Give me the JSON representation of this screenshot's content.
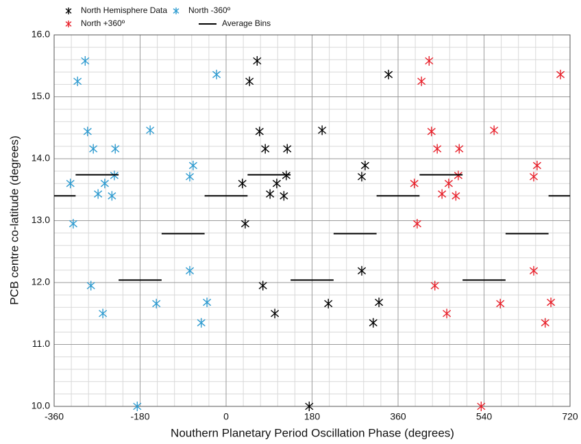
{
  "chart_data": {
    "type": "scatter",
    "xlabel": "Nouthern Planetary Period Oscillation Phase (degrees)",
    "ylabel": "PCB centre co-latitude (degrees)",
    "xlim": [
      -360,
      720
    ],
    "ylim": [
      10,
      16
    ],
    "xticks": [
      -360,
      -180,
      0,
      180,
      360,
      540,
      720
    ],
    "yticks": [
      {
        "value": 10,
        "label": "10.0"
      },
      {
        "value": 11,
        "label": "11.0"
      },
      {
        "value": 12,
        "label": "12.0"
      },
      {
        "value": 13,
        "label": "13.0"
      },
      {
        "value": 14,
        "label": "14.0"
      },
      {
        "value": 15,
        "label": "15.0"
      },
      {
        "value": 16,
        "label": "16.0"
      }
    ],
    "grid": true,
    "series": [
      {
        "name": "North Hemisphere Data",
        "color": "#000000",
        "x": [
          65,
          49,
          70,
          82,
          128,
          34,
          106,
          126,
          92,
          121,
          40,
          77,
          102,
          174,
          201,
          214,
          284,
          291,
          284,
          308,
          320,
          340
        ],
        "y": [
          15.58,
          15.25,
          14.44,
          14.16,
          14.16,
          13.6,
          13.6,
          13.73,
          13.43,
          13.4,
          12.95,
          11.95,
          11.5,
          10.0,
          14.46,
          11.66,
          12.19,
          13.89,
          13.71,
          11.35,
          11.68,
          15.36
        ]
      },
      {
        "name": "North +360º",
        "color": "#e8202a",
        "x": [
          425,
          409,
          430,
          442,
          488,
          394,
          466,
          486,
          452,
          481,
          400,
          437,
          462,
          534,
          561,
          574,
          644,
          651,
          644,
          668,
          680,
          700
        ],
        "y": [
          15.58,
          15.25,
          14.44,
          14.16,
          14.16,
          13.6,
          13.6,
          13.73,
          13.43,
          13.4,
          12.95,
          11.95,
          11.5,
          10.0,
          14.46,
          11.66,
          12.19,
          13.89,
          13.71,
          11.35,
          11.68,
          15.36
        ]
      },
      {
        "name": "North -360º",
        "color": "#2e9bd0",
        "x": [
          -295,
          -311,
          -290,
          -278,
          -232,
          -326,
          -254,
          -234,
          -268,
          -239,
          -320,
          -283,
          -258,
          -186,
          -159,
          -146,
          -76,
          -69,
          -76,
          -52,
          -40,
          -20
        ],
        "y": [
          15.58,
          15.25,
          14.44,
          14.16,
          14.16,
          13.6,
          13.6,
          13.73,
          13.43,
          13.4,
          12.95,
          11.95,
          11.5,
          10.0,
          14.46,
          11.66,
          12.19,
          13.89,
          13.71,
          11.35,
          11.68,
          15.36
        ]
      },
      {
        "name": "Average Bins",
        "color": "#000000",
        "bins": [
          -360,
          -315,
          -225,
          -135,
          -45,
          45,
          135,
          225,
          315,
          405,
          495,
          585,
          675,
          720
        ],
        "values": [
          13.4,
          13.74,
          12.04,
          12.79,
          13.4,
          13.74,
          12.04,
          12.79,
          13.4,
          13.74,
          12.04,
          12.79,
          13.4
        ]
      }
    ]
  }
}
